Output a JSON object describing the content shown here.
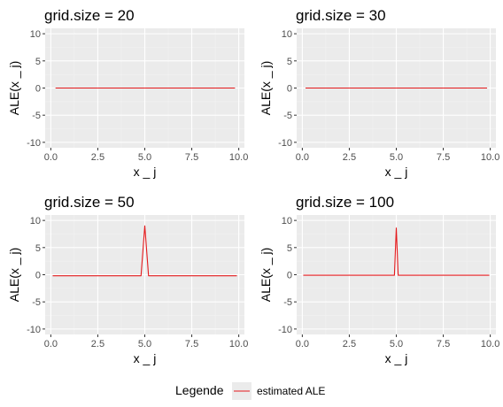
{
  "chart_data": [
    {
      "type": "line",
      "title": "grid.size = 20",
      "xlabel": "x _ j",
      "ylabel": "ALE(x _ j)",
      "xlim": [
        -0.3,
        10.3
      ],
      "ylim": [
        -11,
        11
      ],
      "xticks": [
        0.0,
        2.5,
        5.0,
        7.5,
        10.0
      ],
      "xtick_labels": [
        "0.0",
        "2.5",
        "5.0",
        "7.5",
        "10.0"
      ],
      "yticks": [
        -10,
        -5,
        0,
        5,
        10
      ],
      "ytick_labels": [
        "-10",
        "-5",
        "0",
        "5",
        "10"
      ],
      "grid": true,
      "series": [
        {
          "name": "estimated ALE",
          "color": "#e41a1c",
          "x": [
            0.25,
            9.8
          ],
          "y": [
            0,
            0
          ]
        }
      ]
    },
    {
      "type": "line",
      "title": "grid.size = 30",
      "xlabel": "x _ j",
      "ylabel": "ALE(x _ j)",
      "xlim": [
        -0.3,
        10.3
      ],
      "ylim": [
        -11,
        11
      ],
      "xticks": [
        0.0,
        2.5,
        5.0,
        7.5,
        10.0
      ],
      "xtick_labels": [
        "0.0",
        "2.5",
        "5.0",
        "7.5",
        "10.0"
      ],
      "yticks": [
        -10,
        -5,
        0,
        5,
        10
      ],
      "ytick_labels": [
        "-10",
        "-5",
        "0",
        "5",
        "10"
      ],
      "grid": true,
      "series": [
        {
          "name": "estimated ALE",
          "color": "#e41a1c",
          "x": [
            0.17,
            9.83
          ],
          "y": [
            0,
            0
          ]
        }
      ]
    },
    {
      "type": "line",
      "title": "grid.size = 50",
      "xlabel": "x _ j",
      "ylabel": "ALE(x _ j)",
      "xlim": [
        -0.3,
        10.3
      ],
      "ylim": [
        -11,
        11
      ],
      "xticks": [
        0.0,
        2.5,
        5.0,
        7.5,
        10.0
      ],
      "xtick_labels": [
        "0.0",
        "2.5",
        "5.0",
        "7.5",
        "10.0"
      ],
      "yticks": [
        -10,
        -5,
        0,
        5,
        10
      ],
      "ytick_labels": [
        "-10",
        "-5",
        "0",
        "5",
        "10"
      ],
      "grid": true,
      "series": [
        {
          "name": "estimated ALE",
          "color": "#e41a1c",
          "x": [
            0.1,
            4.8,
            5.0,
            5.2,
            9.9
          ],
          "y": [
            -0.2,
            -0.2,
            9.0,
            -0.2,
            -0.2
          ]
        }
      ]
    },
    {
      "type": "line",
      "title": "grid.size = 100",
      "xlabel": "x _ j",
      "ylabel": "ALE(x _ j)",
      "xlim": [
        -0.3,
        10.3
      ],
      "ylim": [
        -11,
        11
      ],
      "xticks": [
        0.0,
        2.5,
        5.0,
        7.5,
        10.0
      ],
      "xtick_labels": [
        "0.0",
        "2.5",
        "5.0",
        "7.5",
        "10.0"
      ],
      "yticks": [
        -10,
        -5,
        0,
        5,
        10
      ],
      "ytick_labels": [
        "-10",
        "-5",
        "0",
        "5",
        "10"
      ],
      "grid": true,
      "series": [
        {
          "name": "estimated ALE",
          "color": "#e41a1c",
          "x": [
            0.05,
            4.9,
            5.0,
            5.1,
            9.95
          ],
          "y": [
            -0.1,
            -0.1,
            8.6,
            -0.1,
            -0.1
          ]
        }
      ]
    }
  ],
  "legend": {
    "title": "Legende",
    "entries": [
      {
        "label": "estimated ALE",
        "color": "#e41a1c"
      }
    ],
    "placement": "bottom"
  },
  "style": {
    "panel_bg": "#ebebeb",
    "grid_major": "#ffffff",
    "grid_minor": "#f2f2f2"
  }
}
